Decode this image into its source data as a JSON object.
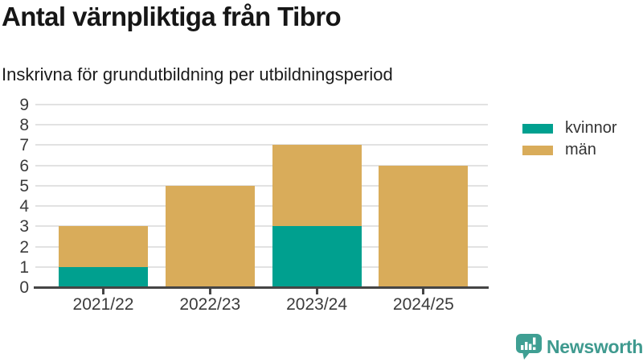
{
  "chart_data": {
    "type": "bar",
    "stacked": true,
    "title": "Antal värnpliktiga från Tibro",
    "subtitle": "Inskrivna för grundutbildning per utbildningsperiod",
    "categories": [
      "2021/22",
      "2022/23",
      "2023/24",
      "2024/25"
    ],
    "series": [
      {
        "name": "kvinnor",
        "color": "#00A08F",
        "values": [
          1,
          0,
          3,
          0
        ]
      },
      {
        "name": "män",
        "color": "#D9AC5A",
        "values": [
          2,
          5,
          4,
          6
        ]
      }
    ],
    "totals": [
      3,
      5,
      7,
      6
    ],
    "ylim": [
      0,
      9
    ],
    "ytick_step": 1,
    "grid": true,
    "legend_position": "right"
  },
  "branding": {
    "name": "Newsworthy",
    "color": "#3F9F93",
    "icon": "newsworthy-speech-bubble-bar-chart-icon"
  },
  "colors": {
    "background": "#FFFFFF",
    "grid": "#E2E2E2",
    "axis": "#454545",
    "axis_labels": "#3B3B3B",
    "title": "#161616"
  }
}
